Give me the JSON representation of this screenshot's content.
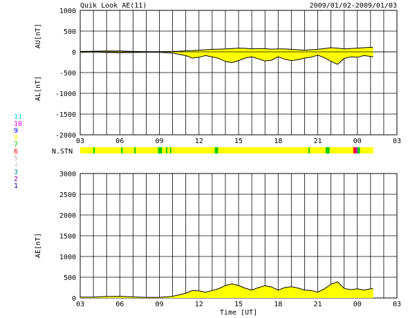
{
  "header": {
    "title": "Quik Look AE(11)",
    "date_range": "2009/01/02-2009/01/03"
  },
  "station_legend": {
    "numbers": [
      "11",
      "10",
      "9",
      "8",
      "7",
      "6",
      "5",
      "4",
      "3",
      "2",
      "1"
    ],
    "colors": [
      "#00e0e0",
      "#ff00ff",
      "#0000ff",
      "#ffff00",
      "#00cc00",
      "#ff0000",
      "#bbbbbb",
      "#d3d3d3",
      "#009090",
      "#990099",
      "#0000aa"
    ]
  },
  "nstn_label": "N.STN",
  "x_axis": {
    "label": "Time [UT]",
    "tick_labels": [
      "03",
      "06",
      "09",
      "12",
      "15",
      "18",
      "21",
      "00",
      "03"
    ],
    "range_hours": [
      3,
      27
    ]
  },
  "chart_data": [
    {
      "type": "area",
      "panel": "AU/AL",
      "ylabel_upper": "AU[nT]",
      "ylabel_lower": "AL[nT]",
      "ylim": [
        -2000,
        1000
      ],
      "y_ticks": [
        1000,
        500,
        0,
        -500,
        -1000,
        -1500,
        -2000
      ],
      "grid": true,
      "fill_color": "#ffff00",
      "series": [
        {
          "name": "AU",
          "x": [
            3.0,
            4.0,
            5.0,
            6.0,
            7.0,
            8.0,
            9.0,
            10.0,
            10.5,
            11.0,
            11.5,
            12.0,
            12.5,
            13.0,
            13.5,
            14.0,
            14.5,
            15.0,
            15.5,
            16.0,
            16.5,
            17.0,
            17.5,
            18.0,
            18.5,
            19.0,
            19.5,
            20.0,
            20.5,
            21.0,
            21.5,
            22.0,
            22.5,
            23.0,
            23.5,
            24.0,
            24.5,
            25.0,
            25.2
          ],
          "values": [
            10,
            15,
            20,
            20,
            10,
            5,
            5,
            10,
            15,
            25,
            30,
            40,
            50,
            60,
            65,
            70,
            80,
            90,
            85,
            70,
            80,
            75,
            65,
            70,
            70,
            60,
            50,
            40,
            50,
            60,
            80,
            100,
            90,
            70,
            80,
            90,
            100,
            110,
            100
          ]
        },
        {
          "name": "AL",
          "x": [
            3.0,
            4.0,
            5.0,
            6.0,
            7.0,
            8.0,
            9.0,
            10.0,
            10.5,
            11.0,
            11.5,
            12.0,
            12.5,
            13.0,
            13.5,
            14.0,
            14.5,
            15.0,
            15.5,
            16.0,
            16.5,
            17.0,
            17.5,
            18.0,
            18.5,
            19.0,
            19.5,
            20.0,
            20.5,
            21.0,
            21.5,
            22.0,
            22.5,
            23.0,
            23.5,
            24.0,
            24.5,
            25.0,
            25.2
          ],
          "values": [
            -10,
            -5,
            -15,
            -20,
            -15,
            -10,
            -10,
            -30,
            -60,
            -90,
            -150,
            -130,
            -90,
            -120,
            -160,
            -230,
            -260,
            -210,
            -150,
            -120,
            -170,
            -220,
            -200,
            -120,
            -180,
            -210,
            -190,
            -150,
            -130,
            -80,
            -140,
            -230,
            -300,
            -160,
            -120,
            -130,
            -90,
            -110,
            -120
          ]
        }
      ]
    },
    {
      "type": "bar",
      "panel": "N.STN",
      "note": "station count color bar",
      "segments": [
        {
          "start": 3.0,
          "end": 25.2,
          "color": "#ffff00"
        },
        {
          "start": 4.0,
          "end": 4.1,
          "color": "#00cc00"
        },
        {
          "start": 6.1,
          "end": 6.2,
          "color": "#00cc00"
        },
        {
          "start": 7.1,
          "end": 7.2,
          "color": "#00cc00"
        },
        {
          "start": 8.9,
          "end": 9.2,
          "color": "#00cc00"
        },
        {
          "start": 9.5,
          "end": 9.6,
          "color": "#00cc00"
        },
        {
          "start": 9.8,
          "end": 9.9,
          "color": "#00cc00"
        },
        {
          "start": 13.2,
          "end": 13.45,
          "color": "#00cc00"
        },
        {
          "start": 20.3,
          "end": 20.4,
          "color": "#00cc00"
        },
        {
          "start": 21.6,
          "end": 21.9,
          "color": "#00cc00"
        },
        {
          "start": 23.7,
          "end": 23.85,
          "color": "#ff0000"
        },
        {
          "start": 23.85,
          "end": 24.0,
          "color": "#cc00cc"
        },
        {
          "start": 24.0,
          "end": 24.2,
          "color": "#00cc00"
        }
      ]
    },
    {
      "type": "area",
      "panel": "AE",
      "ylabel": "AE[nT]",
      "ylim": [
        0,
        3000
      ],
      "y_ticks": [
        3000,
        2500,
        2000,
        1500,
        1000,
        500,
        0
      ],
      "grid": true,
      "fill_color": "#ffff00",
      "series": [
        {
          "name": "AE",
          "x": [
            3.0,
            4.0,
            5.0,
            6.0,
            7.0,
            8.0,
            9.0,
            10.0,
            10.5,
            11.0,
            11.5,
            12.0,
            12.5,
            13.0,
            13.5,
            14.0,
            14.5,
            15.0,
            15.5,
            16.0,
            16.5,
            17.0,
            17.5,
            18.0,
            18.5,
            19.0,
            19.5,
            20.0,
            20.5,
            21.0,
            21.5,
            22.0,
            22.5,
            23.0,
            23.5,
            24.0,
            24.5,
            25.0,
            25.2
          ],
          "values": [
            20,
            20,
            35,
            40,
            25,
            15,
            15,
            40,
            75,
            115,
            180,
            170,
            140,
            180,
            225,
            300,
            340,
            300,
            235,
            190,
            250,
            295,
            265,
            190,
            250,
            270,
            240,
            190,
            180,
            140,
            220,
            330,
            390,
            230,
            200,
            220,
            190,
            220,
            220
          ]
        }
      ]
    }
  ]
}
